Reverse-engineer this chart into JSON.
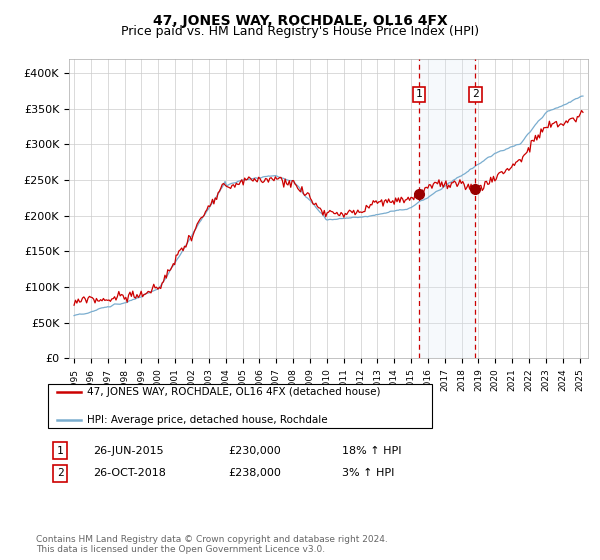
{
  "title": "47, JONES WAY, ROCHDALE, OL16 4FX",
  "subtitle": "Price paid vs. HM Land Registry's House Price Index (HPI)",
  "ylim": [
    0,
    420000
  ],
  "xlim_start": 1994.7,
  "xlim_end": 2025.5,
  "yticks": [
    0,
    50000,
    100000,
    150000,
    200000,
    250000,
    300000,
    350000,
    400000
  ],
  "ytick_labels": [
    "£0",
    "£50K",
    "£100K",
    "£150K",
    "£200K",
    "£250K",
    "£300K",
    "£350K",
    "£400K"
  ],
  "xtick_years": [
    1995,
    1996,
    1997,
    1998,
    1999,
    2000,
    2001,
    2002,
    2003,
    2004,
    2005,
    2006,
    2007,
    2008,
    2009,
    2010,
    2011,
    2012,
    2013,
    2014,
    2015,
    2016,
    2017,
    2018,
    2019,
    2020,
    2021,
    2022,
    2023,
    2024,
    2025
  ],
  "red_line_color": "#cc0000",
  "blue_line_color": "#7aadcf",
  "sale1_x": 2015.48,
  "sale1_y": 230000,
  "sale2_x": 2018.82,
  "sale2_y": 238000,
  "shade_color": "#dce9f5",
  "legend_entry1": "47, JONES WAY, ROCHDALE, OL16 4FX (detached house)",
  "legend_entry2": "HPI: Average price, detached house, Rochdale",
  "table_row1": [
    "1",
    "26-JUN-2015",
    "£230,000",
    "18% ↑ HPI"
  ],
  "table_row2": [
    "2",
    "26-OCT-2018",
    "£238,000",
    "3% ↑ HPI"
  ],
  "footnote": "Contains HM Land Registry data © Crown copyright and database right 2024.\nThis data is licensed under the Open Government Licence v3.0.",
  "background_color": "#ffffff",
  "grid_color": "#cccccc",
  "title_fontsize": 10,
  "subtitle_fontsize": 9,
  "axis_fontsize": 8
}
